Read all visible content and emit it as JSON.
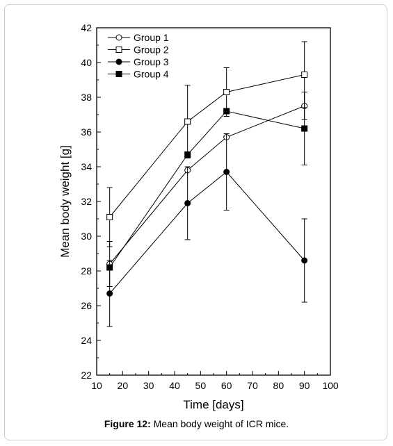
{
  "caption": {
    "label": "Figure 12:",
    "text": "Mean body weight of ICR mice."
  },
  "chart_data": {
    "type": "line",
    "xlabel": "Time [days]",
    "ylabel": "Mean body weight [g]",
    "xlim": [
      10,
      100
    ],
    "ylim": [
      22,
      42
    ],
    "xticks": [
      10,
      20,
      30,
      40,
      50,
      60,
      70,
      80,
      90,
      100
    ],
    "yticks": [
      22,
      24,
      26,
      28,
      30,
      32,
      34,
      36,
      38,
      40,
      42
    ],
    "legend_position": "top-left",
    "grid": false,
    "x": [
      15,
      45,
      60,
      90
    ],
    "series": [
      {
        "name": "Group 1",
        "marker": "open-circle",
        "values": [
          28.4,
          33.8,
          35.7,
          37.5
        ],
        "errors": [
          1.3,
          0.0,
          0.0,
          0.8
        ]
      },
      {
        "name": "Group 2",
        "marker": "open-square",
        "values": [
          31.1,
          36.6,
          38.3,
          39.3
        ],
        "errors": [
          1.7,
          2.1,
          1.4,
          1.9
        ]
      },
      {
        "name": "Group 3",
        "marker": "filled-circle",
        "values": [
          26.7,
          31.9,
          33.7,
          28.6
        ],
        "errors": [
          1.9,
          2.1,
          2.2,
          2.4
        ]
      },
      {
        "name": "Group 4",
        "marker": "filled-square",
        "values": [
          28.2,
          34.7,
          37.2,
          36.2
        ],
        "errors": [
          0.0,
          0.0,
          0.0,
          2.1
        ]
      }
    ]
  }
}
